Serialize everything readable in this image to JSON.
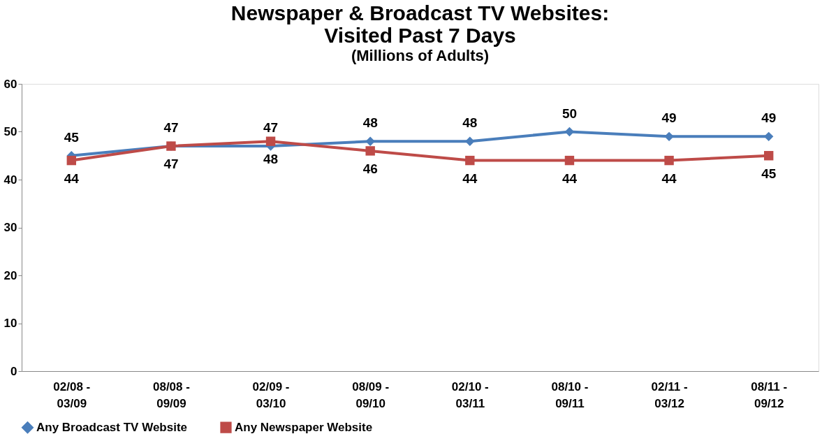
{
  "chart_data": {
    "type": "line",
    "title": "Newspaper & Broadcast TV Websites: Visited Past 7 Days",
    "subtitle": "(Millions of Adults)",
    "categories": [
      "02/08 - 03/09",
      "08/08 - 09/09",
      "02/09 - 03/10",
      "08/09 - 09/10",
      "02/10 - 03/11",
      "08/10 - 09/11",
      "02/11 - 03/12",
      "08/11 - 09/12"
    ],
    "series": [
      {
        "name": "Any Broadcast TV Website",
        "color": "#4a7ebb",
        "marker": "diamond",
        "values": [
          45,
          47,
          47,
          48,
          48,
          50,
          49,
          49
        ]
      },
      {
        "name": "Any Newspaper Website",
        "color": "#be4b48",
        "marker": "square",
        "values": [
          44,
          47,
          48,
          46,
          44,
          44,
          44,
          45
        ]
      }
    ],
    "ylim": [
      0,
      60
    ],
    "yticks": [
      0,
      10,
      20,
      30,
      40,
      50,
      60
    ],
    "grid": false,
    "legend": "bottom",
    "data_labels": true,
    "line_style": "solid"
  }
}
